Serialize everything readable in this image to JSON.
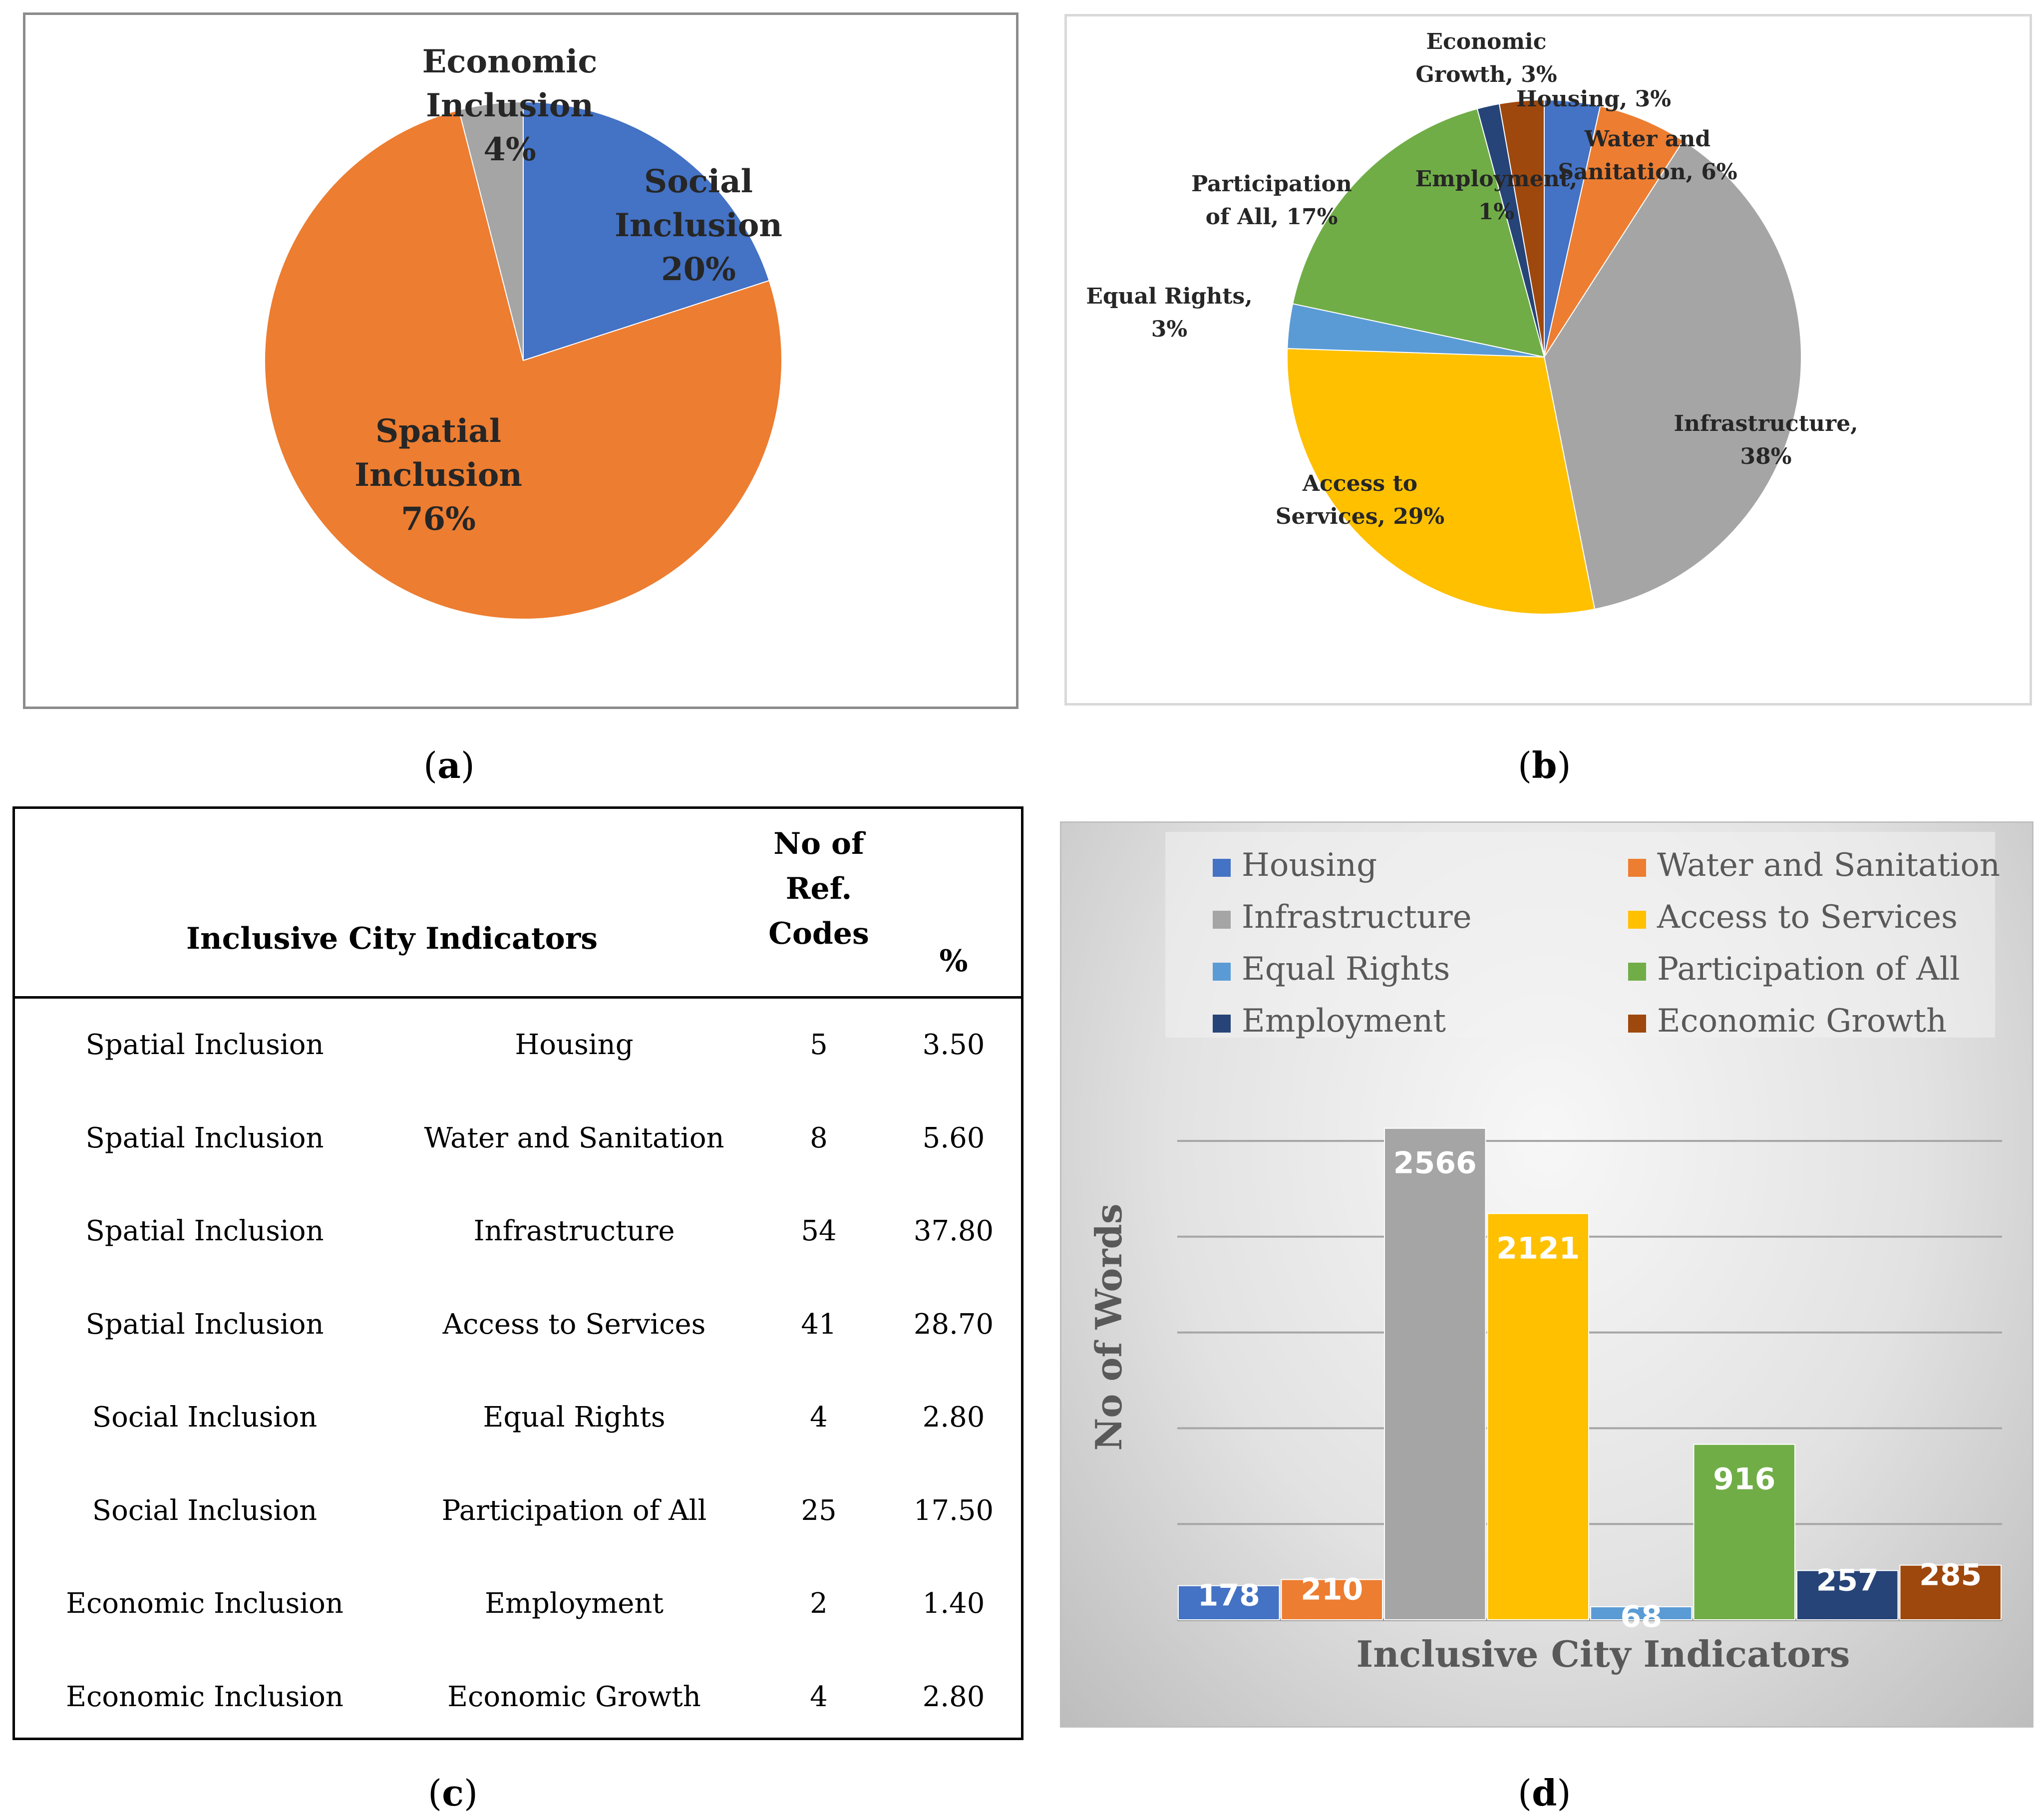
{
  "captions": {
    "a": "a",
    "b": "b",
    "c": "c",
    "d": "d"
  },
  "chart_data": [
    {
      "id": "a",
      "type": "pie",
      "title": "",
      "slices": [
        {
          "name": "Social Inclusion",
          "value": 20,
          "label_lines": [
            "Social",
            "Inclusion",
            "20%"
          ],
          "color": "#4472c4"
        },
        {
          "name": "Spatial Inclusion",
          "value": 76,
          "label_lines": [
            "Spatial",
            "Inclusion",
            "76%"
          ],
          "color": "#ed7d31"
        },
        {
          "name": "Economic Inclusion",
          "value": 4,
          "label_lines": [
            "Economic",
            "Inclusion",
            "4%"
          ],
          "color": "#a5a5a5"
        }
      ]
    },
    {
      "id": "b",
      "type": "pie",
      "title": "",
      "slices": [
        {
          "name": "Housing",
          "value": 3.5,
          "label_lines": [
            "Housing, 3%"
          ],
          "color": "#4472c4"
        },
        {
          "name": "Water and Sanitation",
          "value": 5.6,
          "label_lines": [
            "Water and",
            "Sanitation, 6%"
          ],
          "color": "#ed7d31"
        },
        {
          "name": "Infrastructure",
          "value": 37.8,
          "label_lines": [
            "Infrastructure,",
            "38%"
          ],
          "color": "#a5a5a5"
        },
        {
          "name": "Access to Services",
          "value": 28.7,
          "label_lines": [
            "Access to",
            "Services, 29%"
          ],
          "color": "#ffc000"
        },
        {
          "name": "Equal Rights",
          "value": 2.8,
          "label_lines": [
            "Equal Rights,",
            "3%"
          ],
          "color": "#5b9bd5"
        },
        {
          "name": "Participation of All",
          "value": 17.5,
          "label_lines": [
            "Participation",
            "of All, 17%"
          ],
          "color": "#70ad47"
        },
        {
          "name": "Employment",
          "value": 1.4,
          "label_lines": [
            "Employment,",
            "1%"
          ],
          "color": "#264478"
        },
        {
          "name": "Economic Growth",
          "value": 2.8,
          "label_lines": [
            "Economic",
            "Growth, 3%"
          ],
          "color": "#9e480e"
        }
      ]
    },
    {
      "id": "d",
      "type": "bar",
      "title": "",
      "xlabel": "Inclusive City Indicators",
      "ylabel": "No of Words",
      "ylim": [
        0,
        3000
      ],
      "categories": [
        "Housing",
        "Water and Sanitation",
        "Infrastructure",
        "Access to Services",
        "Equal Rights",
        "Participation of All",
        "Employment",
        "Economic Growth"
      ],
      "values": [
        178,
        210,
        2566,
        2121,
        68,
        916,
        257,
        285
      ],
      "colors": [
        "#4472c4",
        "#ed7d31",
        "#a5a5a5",
        "#ffc000",
        "#5b9bd5",
        "#70ad47",
        "#264478",
        "#9e480e"
      ],
      "legend": "top"
    }
  ],
  "table": {
    "header": {
      "indicators": "Inclusive City Indicators",
      "codes_lines": [
        "No of",
        "Ref.",
        "Codes"
      ],
      "percent": "%"
    },
    "rows": [
      {
        "group": "Spatial Inclusion",
        "indicator": "Housing",
        "codes": "5",
        "percent": "3.50"
      },
      {
        "group": "Spatial Inclusion",
        "indicator": "Water and Sanitation",
        "codes": "8",
        "percent": "5.60"
      },
      {
        "group": "Spatial Inclusion",
        "indicator": "Infrastructure",
        "codes": "54",
        "percent": "37.80"
      },
      {
        "group": "Spatial Inclusion",
        "indicator": "Access to Services",
        "codes": "41",
        "percent": "28.70"
      },
      {
        "group": "Social Inclusion",
        "indicator": "Equal Rights",
        "codes": "4",
        "percent": "2.80"
      },
      {
        "group": "Social Inclusion",
        "indicator": "Participation of All",
        "codes": "25",
        "percent": "17.50"
      },
      {
        "group": "Economic Inclusion",
        "indicator": "Employment",
        "codes": "2",
        "percent": "1.40"
      },
      {
        "group": "Economic Inclusion",
        "indicator": "Economic Growth",
        "codes": "4",
        "percent": "2.80"
      }
    ]
  }
}
